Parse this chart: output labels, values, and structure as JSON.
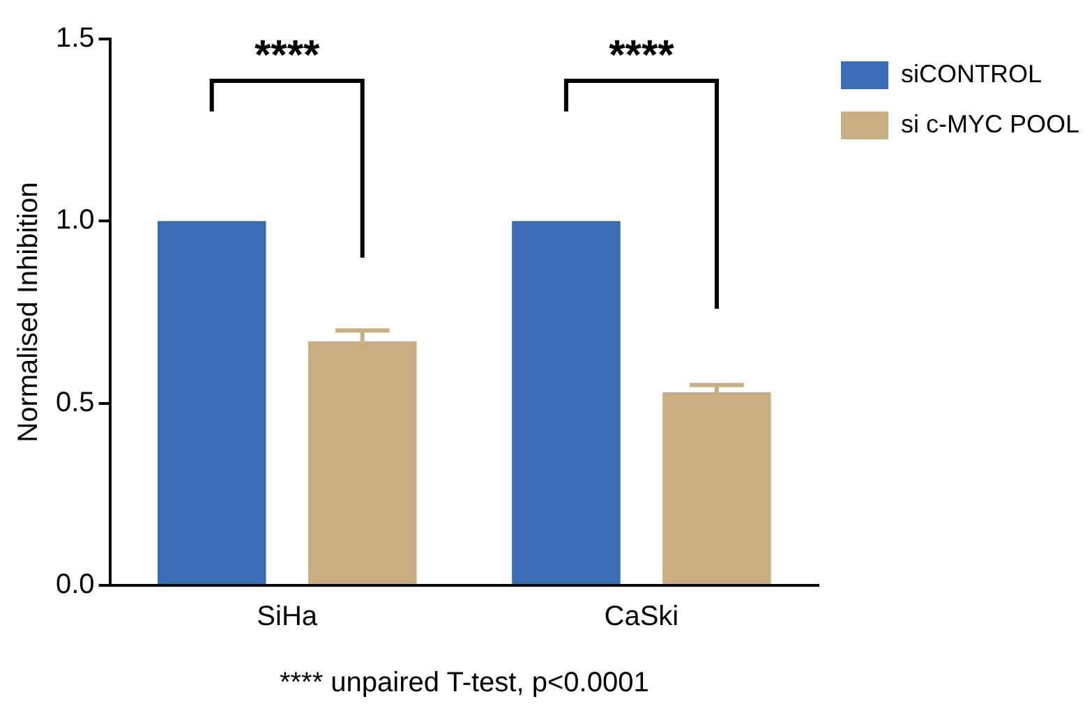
{
  "chart_data": {
    "type": "bar",
    "ylabel": "Normalised Inhibition",
    "categories": [
      "SiHa",
      "CaSki"
    ],
    "series": [
      {
        "name": "siCONTROL",
        "color": "#3a6db5",
        "values": [
          1.0,
          1.0
        ]
      },
      {
        "name": "si c-MYC POOL",
        "color": "#c8ae82",
        "values": [
          0.67,
          0.53
        ],
        "errors": [
          [
            0.67,
            0.7
          ],
          [
            0.53,
            0.55
          ]
        ]
      }
    ],
    "ylim": [
      0,
      1.5
    ],
    "yticks": [
      {
        "value": 0,
        "label": "0.0"
      },
      {
        "value": 0.5,
        "label": "0.5"
      },
      {
        "value": 1,
        "label": "1.0"
      },
      {
        "value": 1.5,
        "label": "1.5"
      }
    ],
    "grid": false,
    "legend": "top right",
    "annotations": [
      "****",
      "****",
      "**** unpaired T-test, p<0.0001"
    ]
  }
}
